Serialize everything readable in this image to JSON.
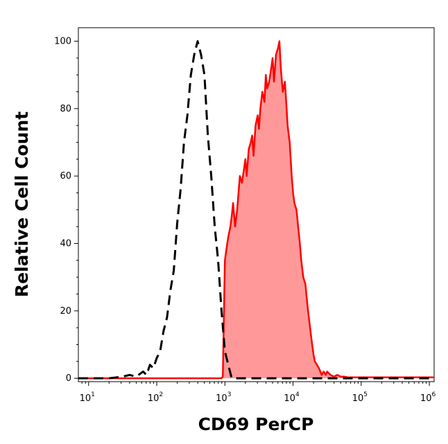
{
  "chart_data": {
    "type": "area",
    "title": "",
    "xlabel": "CD69 PerCP",
    "ylabel": "Relative Cell Count",
    "x_scale": "log10",
    "xlim": [
      0.85,
      6.07
    ],
    "ylim": [
      -1,
      104
    ],
    "grid": false,
    "x_ticks": [
      {
        "base": "10",
        "exp": "1",
        "value": 1
      },
      {
        "base": "10",
        "exp": "2",
        "value": 2
      },
      {
        "base": "10",
        "exp": "3",
        "value": 3
      },
      {
        "base": "10",
        "exp": "4",
        "value": 4
      },
      {
        "base": "10",
        "exp": "5",
        "value": 5
      },
      {
        "base": "10",
        "exp": "6",
        "value": 6
      }
    ],
    "y_ticks": [
      {
        "label": "0",
        "value": 0
      },
      {
        "label": "20",
        "value": 20
      },
      {
        "label": "40",
        "value": 40
      },
      {
        "label": "60",
        "value": 60
      },
      {
        "label": "80",
        "value": 80
      },
      {
        "label": "100",
        "value": 100
      }
    ],
    "series": [
      {
        "style": "dashed-outline",
        "color": "#000000",
        "x_log10": [
          0.85,
          1.3,
          1.5,
          1.6,
          1.7,
          1.8,
          1.85,
          1.9,
          1.95,
          2.0,
          2.05,
          2.1,
          2.15,
          2.2,
          2.25,
          2.3,
          2.35,
          2.4,
          2.45,
          2.5,
          2.55,
          2.6,
          2.65,
          2.7,
          2.75,
          2.8,
          2.85,
          2.9,
          2.95,
          3.0,
          3.1,
          4.0,
          6.07
        ],
        "y": [
          0,
          0,
          0.5,
          1,
          0.5,
          2,
          1,
          4,
          3,
          6,
          8,
          14,
          18,
          26,
          32,
          46,
          56,
          70,
          78,
          90,
          96,
          100,
          96,
          90,
          72,
          60,
          45,
          35,
          20,
          8,
          0,
          0,
          0
        ]
      },
      {
        "style": "filled",
        "color": "#ff0000",
        "fill": "#ff9999",
        "x_log10": [
          0.85,
          2.95,
          2.97,
          3.0,
          3.02,
          3.05,
          3.08,
          3.1,
          3.12,
          3.15,
          3.18,
          3.2,
          3.22,
          3.25,
          3.28,
          3.3,
          3.32,
          3.35,
          3.38,
          3.4,
          3.42,
          3.45,
          3.48,
          3.5,
          3.52,
          3.55,
          3.58,
          3.6,
          3.62,
          3.65,
          3.68,
          3.7,
          3.72,
          3.75,
          3.78,
          3.8,
          3.82,
          3.85,
          3.88,
          3.9,
          3.92,
          3.95,
          3.98,
          4.0,
          4.02,
          4.05,
          4.08,
          4.1,
          4.12,
          4.15,
          4.18,
          4.2,
          4.22,
          4.25,
          4.28,
          4.3,
          4.32,
          4.35,
          4.38,
          4.4,
          4.42,
          4.45,
          4.48,
          4.5,
          4.55,
          4.6,
          4.65,
          4.7,
          4.75,
          4.8,
          4.85,
          6.07
        ],
        "y": [
          0,
          0,
          0.5,
          35,
          38,
          42,
          45,
          48,
          52,
          45,
          50,
          55,
          60,
          58,
          62,
          65,
          60,
          68,
          70,
          72,
          66,
          75,
          78,
          74,
          80,
          85,
          82,
          90,
          86,
          88,
          92,
          95,
          88,
          96,
          98,
          100,
          92,
          85,
          88,
          82,
          75,
          70,
          60,
          55,
          52,
          50,
          44,
          40,
          35,
          30,
          28,
          24,
          20,
          15,
          10,
          7,
          5,
          4,
          3,
          2,
          1,
          2,
          1,
          2,
          1,
          0.5,
          1,
          0.5,
          0.5,
          0.3,
          0.3,
          0.3
        ]
      }
    ]
  }
}
